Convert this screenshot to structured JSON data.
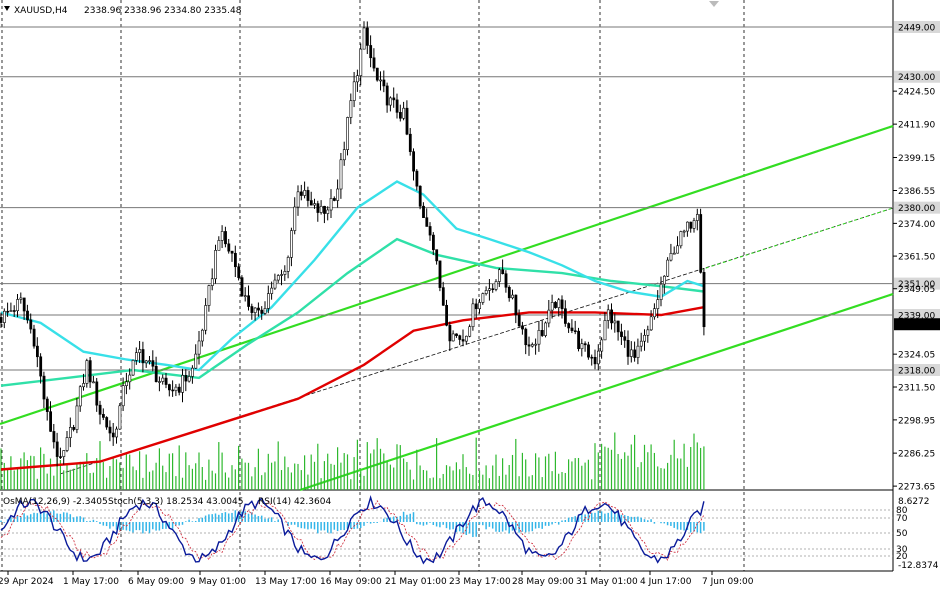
{
  "header": {
    "symbol": "XAUUSD,H4",
    "ohlc": "2338.96 2338.96 2334.80 2335.48"
  },
  "indicator_header": {
    "osma": "OsMA(12,26,9) -2.3405",
    "stoch": "Stoch(5,3,3) 18.2534 43.0045",
    "rsi": "RSI(14) 42.3604"
  },
  "price_axis": {
    "ticks": [
      "2424.50",
      "2411.90",
      "2399.15",
      "2386.55",
      "2374.00",
      "2361.50",
      "2349.05",
      "2324.05",
      "2311.50",
      "2298.95",
      "2286.25",
      "2273.65"
    ],
    "levels": [
      {
        "value": "2449.00",
        "price": 2449.0
      },
      {
        "value": "2430.00",
        "price": 2430.0
      },
      {
        "value": "2380.00",
        "price": 2380.0
      },
      {
        "value": "2351.00",
        "price": 2351.0
      },
      {
        "value": "2339.00",
        "price": 2339.0
      },
      {
        "value": "2318.00",
        "price": 2318.0
      }
    ],
    "current": "2335.48"
  },
  "indicator_axis": {
    "max": "8.6272",
    "min": "-12.8374",
    "stoch_levels": [
      "80",
      "70",
      "50",
      "30",
      "20"
    ]
  },
  "time_axis": [
    "29 Apr 2024",
    "1 May 17:00",
    "6 May 09:00",
    "9 May 01:00",
    "13 May 17:00",
    "16 May 09:00",
    "21 May 01:00",
    "23 May 17:00",
    "28 May 09:00",
    "31 May 01:00",
    "4 Jun 17:00",
    "7 Jun 09:00"
  ],
  "colors": {
    "candle": "#000000",
    "ma_red": "#e00000",
    "ma_cyan": "#38e0e8",
    "ma_teal": "#30e0a8",
    "channel": "#33dd22",
    "volume": "#2eb82e",
    "osma": "#33b5e8",
    "stoch_main": "#0a1a9a",
    "stoch_signal": "#cc2233"
  }
}
